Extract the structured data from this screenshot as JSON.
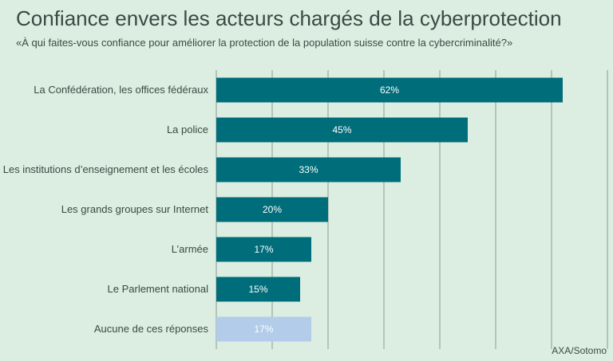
{
  "chart_data": {
    "type": "bar",
    "orientation": "horizontal",
    "title": "Confiance envers les acteurs chargés de la cyberprotection",
    "subtitle": "«À qui faites-vous confiance pour améliorer la protection de la population suisse contre la cybercriminalité?»",
    "source": "AXA/Sotomo",
    "categories": [
      "La Confédération, les offices fédéraux",
      "La police",
      "Les institutions d’enseignement et les écoles",
      "Les grands groupes sur Internet",
      "L’armée",
      "Le Parlement national",
      "Aucune de ces réponses"
    ],
    "values": [
      62,
      45,
      33,
      20,
      17,
      15,
      17
    ],
    "value_labels": [
      "62%",
      "45%",
      "33%",
      "20%",
      "17%",
      "15%",
      "17%"
    ],
    "xlim": [
      0,
      70
    ],
    "gridlines": [
      0,
      10,
      20,
      30,
      40,
      50,
      60,
      70
    ],
    "grid": true,
    "colors": {
      "main": "#006d7a",
      "highlight": "#b3cce9",
      "background": "#dbeee1"
    },
    "highlight_index": 6
  }
}
